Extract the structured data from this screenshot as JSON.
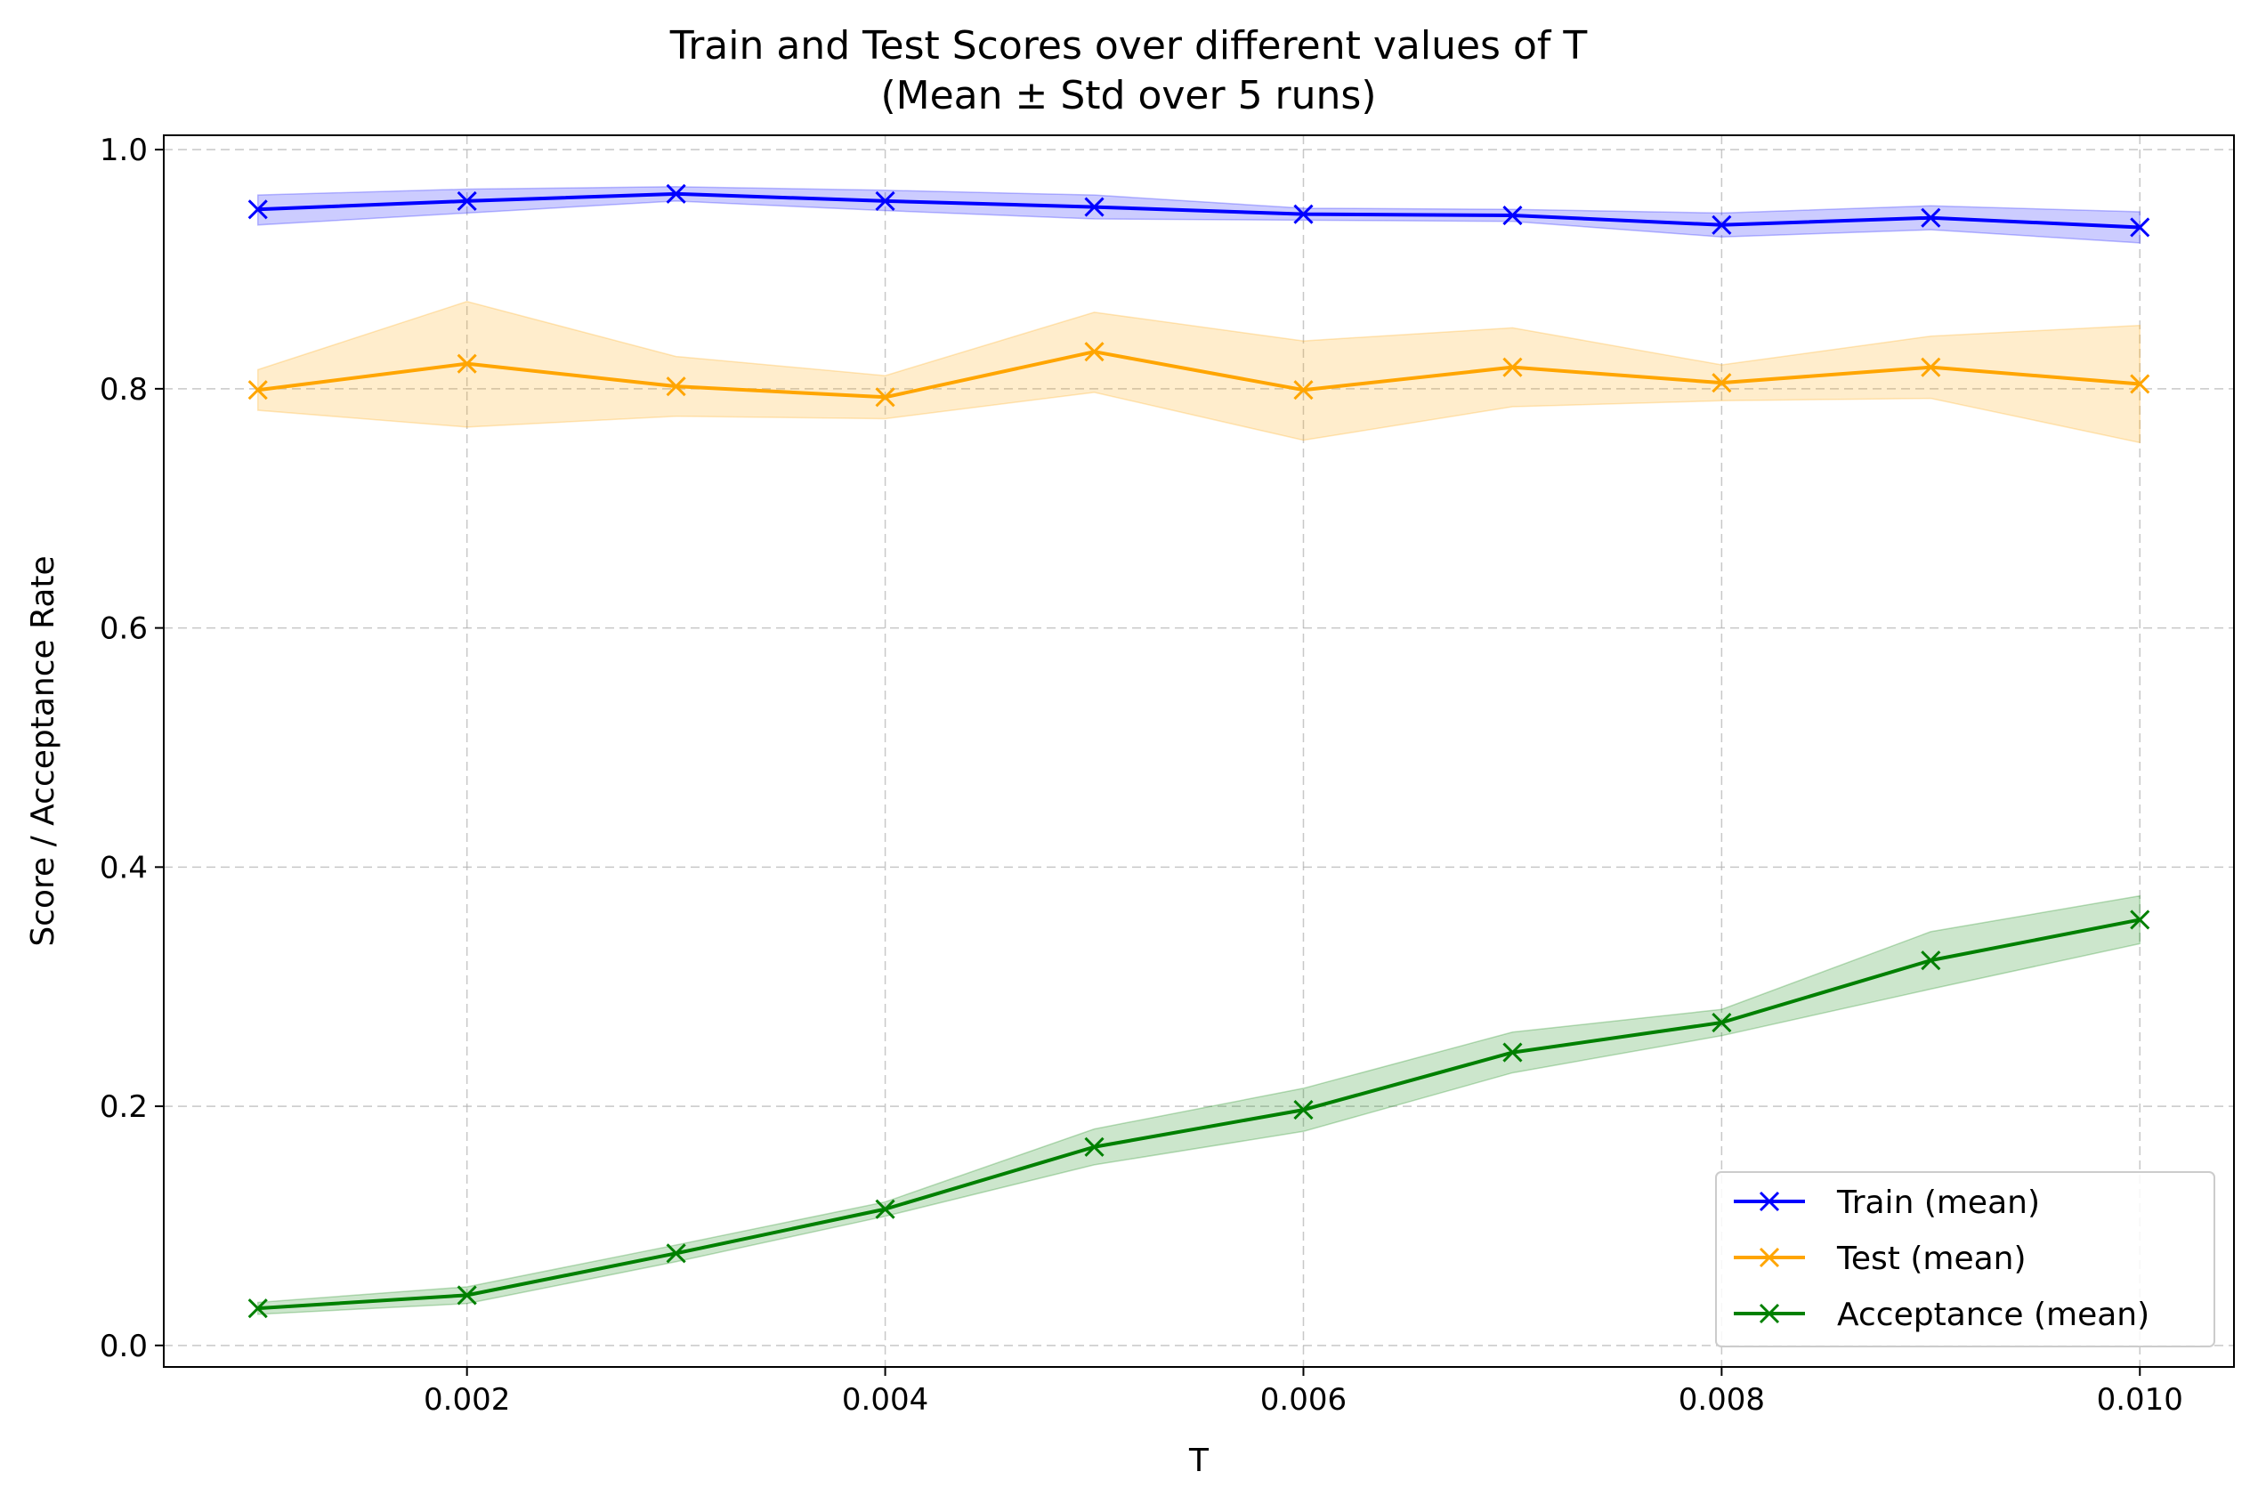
{
  "chart_data": {
    "type": "line",
    "title": "Train and Test Scores over different values of T",
    "subtitle": "(Mean ± Std over 5 runs)",
    "xlabel": "T",
    "ylabel": "Score / Acceptance Rate",
    "xlim": [
      0.00055,
      0.01045
    ],
    "ylim": [
      -0.018,
      1.012
    ],
    "x": [
      0.001,
      0.002,
      0.003,
      0.004,
      0.005,
      0.006,
      0.007,
      0.008,
      0.009,
      0.01
    ],
    "xticks": [
      0.002,
      0.004,
      0.006,
      0.008,
      0.01
    ],
    "xtick_labels": [
      "0.002",
      "0.004",
      "0.006",
      "0.008",
      "0.010"
    ],
    "yticks": [
      0.0,
      0.2,
      0.4,
      0.6,
      0.8,
      1.0
    ],
    "ytick_labels": [
      "0.0",
      "0.2",
      "0.4",
      "0.6",
      "0.8",
      "1.0"
    ],
    "grid": true,
    "legend_position": "lower-right",
    "series": [
      {
        "name": "Train (mean)",
        "color": "#0000ff",
        "marker": "x",
        "values": [
          0.95,
          0.957,
          0.963,
          0.957,
          0.952,
          0.946,
          0.945,
          0.937,
          0.943,
          0.935
        ],
        "lower": [
          0.937,
          0.947,
          0.957,
          0.949,
          0.942,
          0.941,
          0.94,
          0.927,
          0.933,
          0.922
        ],
        "upper": [
          0.962,
          0.967,
          0.969,
          0.966,
          0.962,
          0.951,
          0.95,
          0.947,
          0.953,
          0.948
        ]
      },
      {
        "name": "Test (mean)",
        "color": "#ffa500",
        "marker": "x",
        "values": [
          0.799,
          0.821,
          0.802,
          0.793,
          0.831,
          0.799,
          0.818,
          0.805,
          0.818,
          0.804
        ],
        "lower": [
          0.782,
          0.768,
          0.777,
          0.775,
          0.797,
          0.757,
          0.785,
          0.79,
          0.792,
          0.755
        ],
        "upper": [
          0.816,
          0.873,
          0.827,
          0.811,
          0.864,
          0.84,
          0.851,
          0.82,
          0.844,
          0.853
        ]
      },
      {
        "name": "Acceptance (mean)",
        "color": "#008000",
        "marker": "x",
        "values": [
          0.031,
          0.042,
          0.077,
          0.114,
          0.166,
          0.197,
          0.245,
          0.27,
          0.322,
          0.356
        ],
        "lower": [
          0.026,
          0.035,
          0.07,
          0.108,
          0.151,
          0.179,
          0.228,
          0.259,
          0.298,
          0.336
        ],
        "upper": [
          0.036,
          0.049,
          0.084,
          0.12,
          0.181,
          0.215,
          0.262,
          0.281,
          0.346,
          0.376
        ]
      }
    ]
  }
}
